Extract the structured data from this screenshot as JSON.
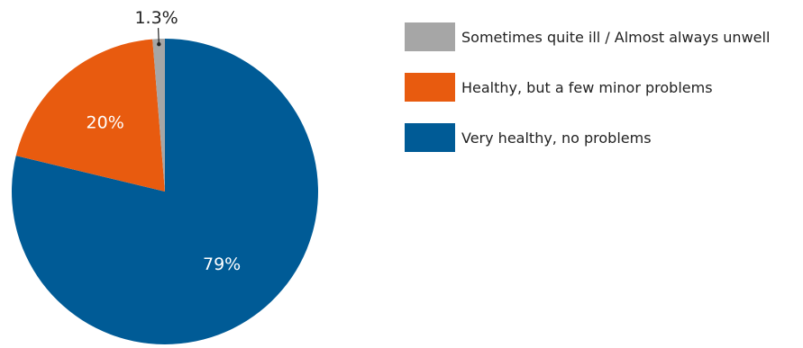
{
  "chart_data": {
    "type": "pie",
    "title": "",
    "slices": [
      {
        "label": "Very healthy, no problems",
        "value": 79,
        "value_label": "79%",
        "color": "#005b96"
      },
      {
        "label": "Healthy, but a few minor problems",
        "value": 20,
        "value_label": "20%",
        "color": "#e85b0f"
      },
      {
        "label": "Sometimes quite ill / Almost always unwell",
        "value": 1.3,
        "value_label": "1.3%",
        "color": "#a6a6a6"
      }
    ],
    "legend_position": "right",
    "legend_order": [
      "Sometimes quite ill / Almost always unwell",
      "Healthy, but a few minor problems",
      "Very healthy, no problems"
    ],
    "start_angle": "12 o'clock",
    "direction": "clockwise"
  }
}
